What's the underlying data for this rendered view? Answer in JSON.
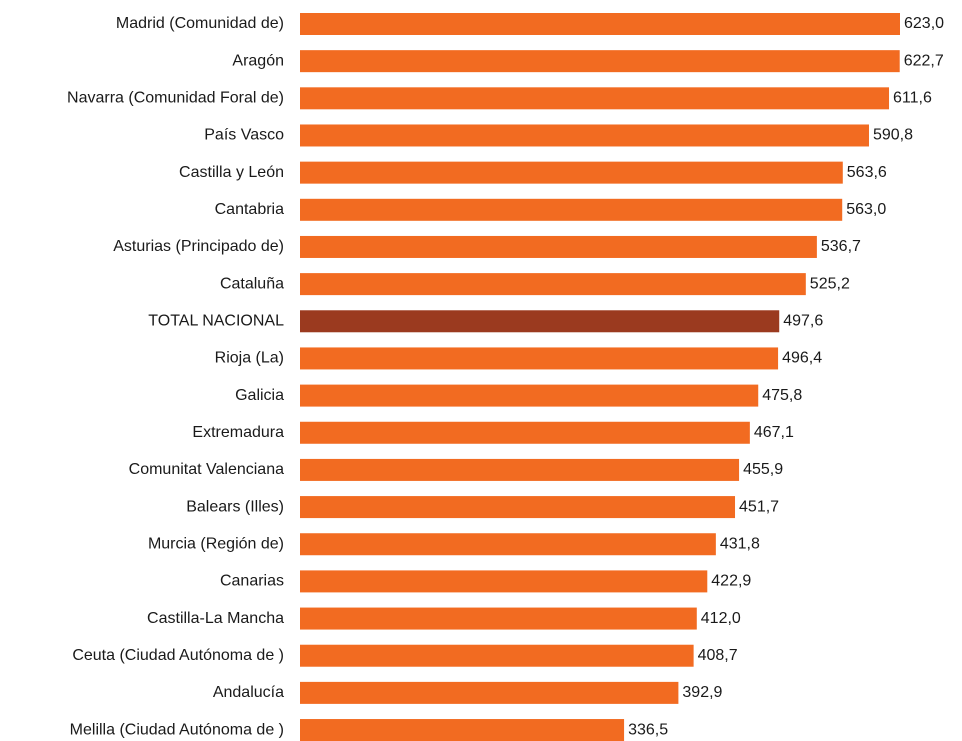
{
  "chart_data": {
    "type": "bar",
    "orientation": "horizontal",
    "categories": [
      "Madrid (Comunidad de)",
      "Aragón",
      "Navarra (Comunidad Foral de)",
      "País Vasco",
      "Castilla y León",
      "Cantabria",
      "Asturias (Principado de)",
      "Cataluña",
      "TOTAL NACIONAL",
      "Rioja (La)",
      "Galicia",
      "Extremadura",
      "Comunitat Valenciana",
      "Balears (Illes)",
      "Murcia (Región de)",
      "Canarias",
      "Castilla-La Mancha",
      "Ceuta (Ciudad Autónoma de )",
      "Andalucía",
      "Melilla (Ciudad Autónoma de )"
    ],
    "values": [
      623.0,
      622.7,
      611.6,
      590.8,
      563.6,
      563.0,
      536.7,
      525.2,
      497.6,
      496.4,
      475.8,
      467.1,
      455.9,
      451.7,
      431.8,
      422.9,
      412.0,
      408.7,
      392.9,
      336.5
    ],
    "value_labels": [
      "623,0",
      "622,7",
      "611,6",
      "590,8",
      "563,6",
      "563,0",
      "536,7",
      "525,2",
      "497,6",
      "496,4",
      "475,8",
      "467,1",
      "455,9",
      "451,7",
      "431,8",
      "422,9",
      "412,0",
      "408,7",
      "392,9",
      "336,5"
    ],
    "colors": [
      "#f26b21",
      "#f26b21",
      "#f26b21",
      "#f26b21",
      "#f26b21",
      "#f26b21",
      "#f26b21",
      "#f26b21",
      "#9b3a1f",
      "#f26b21",
      "#f26b21",
      "#f26b21",
      "#f26b21",
      "#f26b21",
      "#f26b21",
      "#f26b21",
      "#f26b21",
      "#f26b21",
      "#f26b21",
      "#f26b21"
    ],
    "xlim": [
      0,
      623
    ]
  }
}
